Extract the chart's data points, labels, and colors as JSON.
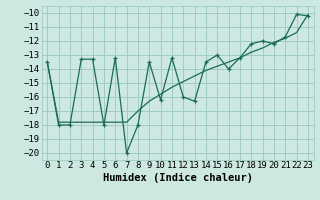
{
  "title": "",
  "xlabel": "Humidex (Indice chaleur)",
  "ylabel": "",
  "bg_color": "#cce8e0",
  "line_color": "#1a6b5a",
  "grid_color": "#a0ccc4",
  "series1_x": [
    0,
    1,
    2,
    3,
    4,
    5,
    6,
    7,
    8,
    9,
    10,
    11,
    12,
    13,
    14,
    15,
    16,
    17,
    18,
    19,
    20,
    21,
    22,
    23
  ],
  "series1_y": [
    -13.5,
    -18.0,
    -18.0,
    -13.3,
    -13.3,
    -18.0,
    -13.2,
    -20.0,
    -18.0,
    -13.5,
    -16.2,
    -13.2,
    -16.0,
    -16.3,
    -13.5,
    -13.0,
    -14.0,
    -13.2,
    -12.2,
    -12.0,
    -12.2,
    -11.7,
    -10.1,
    -10.2
  ],
  "series2_x": [
    0,
    1,
    2,
    3,
    4,
    5,
    6,
    7,
    8,
    9,
    10,
    11,
    12,
    13,
    14,
    15,
    16,
    17,
    18,
    19,
    20,
    21,
    22,
    23
  ],
  "series2_y": [
    -13.5,
    -17.8,
    -17.8,
    -17.8,
    -17.8,
    -17.8,
    -17.8,
    -17.8,
    -17.0,
    -16.3,
    -15.8,
    -15.3,
    -14.9,
    -14.5,
    -14.1,
    -13.8,
    -13.5,
    -13.2,
    -12.8,
    -12.5,
    -12.1,
    -11.8,
    -11.4,
    -10.1
  ],
  "xlim": [
    -0.5,
    23.5
  ],
  "ylim": [
    -20.5,
    -9.5
  ],
  "yticks": [
    -20,
    -19,
    -18,
    -17,
    -16,
    -15,
    -14,
    -13,
    -12,
    -11,
    -10
  ],
  "xticks": [
    0,
    1,
    2,
    3,
    4,
    5,
    6,
    7,
    8,
    9,
    10,
    11,
    12,
    13,
    14,
    15,
    16,
    17,
    18,
    19,
    20,
    21,
    22,
    23
  ],
  "font_size": 6.5,
  "xlabel_font_size": 7.5
}
